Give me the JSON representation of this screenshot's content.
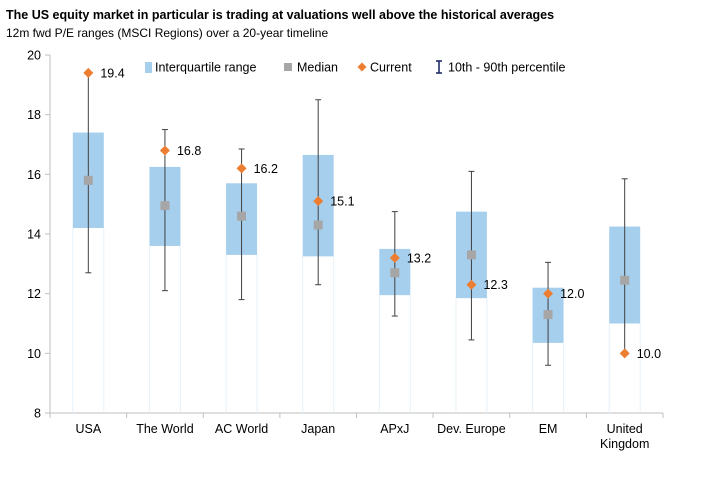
{
  "title": "The US equity market in particular is trading at valuations well above the historical averages",
  "subtitle": "12m fwd P/E ranges (MSCI Regions) over a 20-year timeline",
  "colors": {
    "iqr": "#a6cfee",
    "median": "#a6a6a6",
    "current": "#ed7d31",
    "whisker": "#404040",
    "percentile_legend": "#1f2d6b",
    "axis": "#bfbfbf"
  },
  "chart_data": {
    "type": "boxplot",
    "categories": [
      "USA",
      "The World",
      "AC World",
      "Japan",
      "APxJ",
      "Dev. Europe",
      "EM",
      "United\nKingdom"
    ],
    "ylim": [
      8,
      20
    ],
    "yticks": [
      "8",
      "10",
      "12",
      "14",
      "16",
      "18",
      "20"
    ],
    "series": [
      {
        "name": "Interquartile range",
        "low": [
          14.2,
          13.6,
          13.3,
          13.25,
          11.95,
          11.85,
          10.35,
          11.0
        ],
        "high": [
          17.4,
          16.25,
          15.7,
          16.65,
          13.5,
          14.75,
          12.2,
          14.25
        ]
      },
      {
        "name": "Median",
        "values": [
          15.8,
          14.95,
          14.6,
          14.3,
          12.7,
          13.3,
          11.3,
          12.45
        ]
      },
      {
        "name": "Current",
        "values": [
          19.4,
          16.8,
          16.2,
          15.1,
          13.2,
          12.3,
          12.0,
          10.0
        ],
        "labels": [
          "19.4",
          "16.8",
          "16.2",
          "15.1",
          "13.2",
          "12.3",
          "12.0",
          "10.0"
        ]
      },
      {
        "name": "10th - 90th percentile",
        "low": [
          12.7,
          12.1,
          11.8,
          12.3,
          11.25,
          10.45,
          9.6,
          10.05
        ],
        "high": [
          19.4,
          17.5,
          16.85,
          18.5,
          14.75,
          16.1,
          13.05,
          15.85
        ]
      }
    ],
    "legend": [
      "Interquartile range",
      "Median",
      "Current",
      "10th - 90th percentile"
    ],
    "legend_position": "top"
  }
}
